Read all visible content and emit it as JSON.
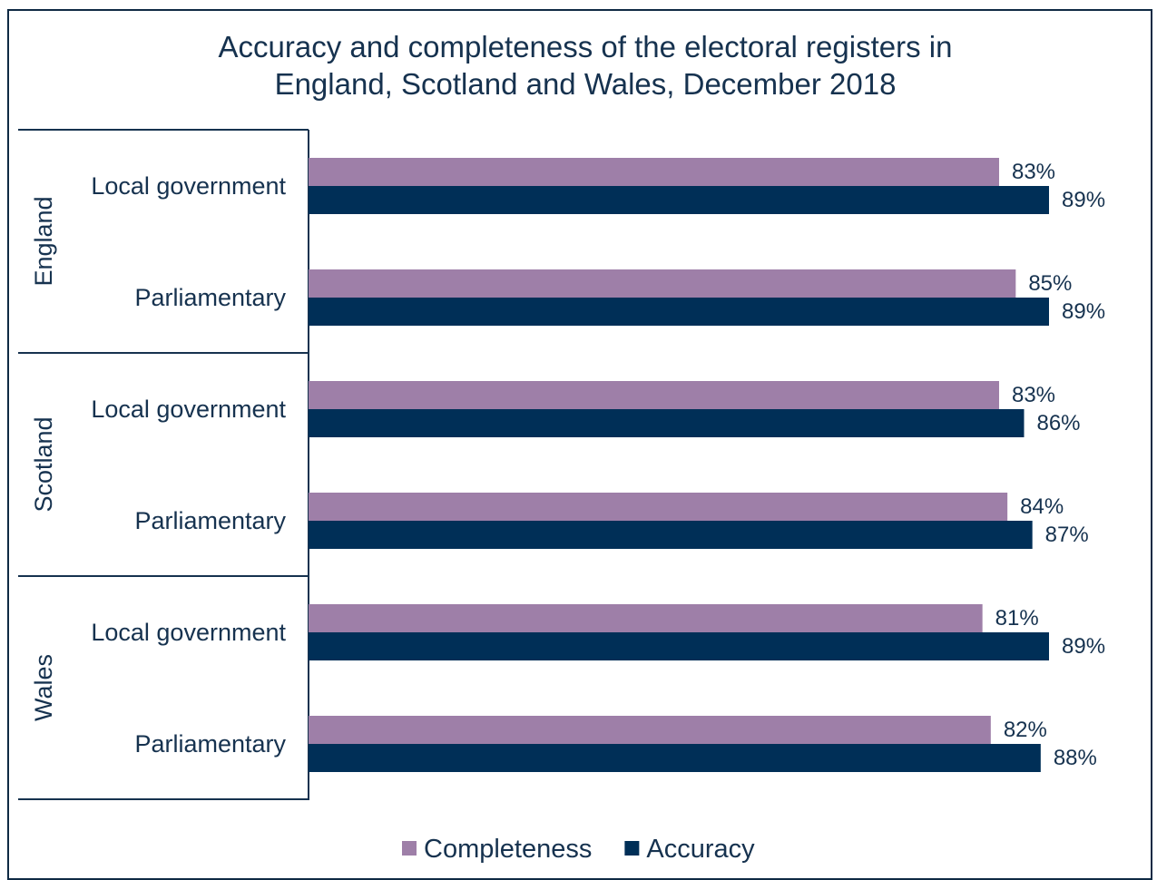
{
  "chart_data": {
    "type": "bar",
    "orientation": "horizontal",
    "title": [
      "Accuracy and completeness of the electoral registers in",
      "England, Scotland and Wales, December 2018"
    ],
    "groups": [
      {
        "name": "England",
        "categories": [
          "Local government",
          "Parliamentary"
        ]
      },
      {
        "name": "Scotland",
        "categories": [
          "Local government",
          "Parliamentary"
        ]
      },
      {
        "name": "Wales",
        "categories": [
          "Local government",
          "Parliamentary"
        ]
      }
    ],
    "series": [
      {
        "name": "Completeness",
        "color": "#9e7fa8",
        "values": [
          83,
          85,
          83,
          84,
          81,
          82
        ],
        "labels": [
          "83%",
          "85%",
          "83%",
          "84%",
          "81%",
          "82%"
        ]
      },
      {
        "name": "Accuracy",
        "color": "#002f57",
        "values": [
          89,
          89,
          86,
          87,
          89,
          88
        ],
        "labels": [
          "89%",
          "89%",
          "86%",
          "87%",
          "89%",
          "88%"
        ]
      }
    ],
    "xlim": [
      0,
      100
    ],
    "grid": false,
    "legend_position": "bottom"
  }
}
